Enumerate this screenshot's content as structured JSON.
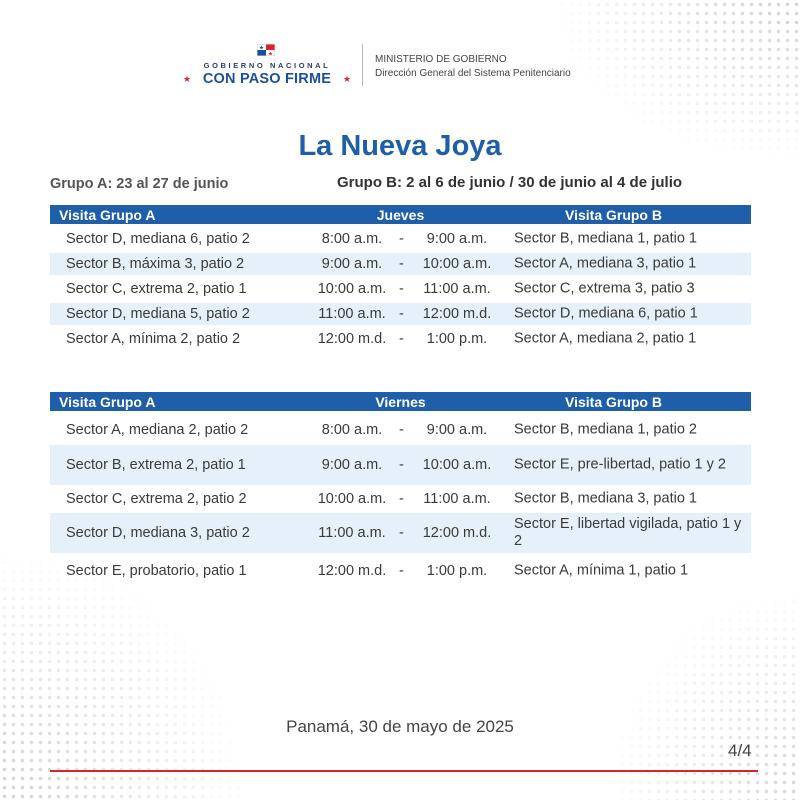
{
  "header": {
    "gov_top": "GOBIERNO NACIONAL",
    "gov_main": "CON PASO FIRME",
    "ministry": "MINISTERIO DE GOBIERNO",
    "direction": "Dirección General del Sistema Penitenciario"
  },
  "title": "La Nueva Joya",
  "grupo_a": "Grupo A: 23 al 27 de junio",
  "grupo_b": "Grupo B: 2 al 6 de junio / 30 de junio al 4 de julio",
  "table1": {
    "col_a": "Visita Grupo A",
    "day": "Jueves",
    "col_b": "Visita Grupo B",
    "rows": [
      {
        "a": "Sector D, mediana 6, patio 2",
        "start": "8:00 a.m.",
        "dash": "-",
        "end": "9:00 a.m.",
        "b": "Sector B,  mediana 1, patio 1"
      },
      {
        "a": "Sector B, máxima 3, patio 2",
        "start": "9:00 a.m.",
        "dash": "-",
        "end": "10:00 a.m.",
        "b": "Sector A, mediana 3, patio 1"
      },
      {
        "a": "Sector C, extrema 2, patio 1",
        "start": "10:00 a.m.",
        "dash": "-",
        "end": "11:00 a.m.",
        "b": "Sector C, extrema 3, patio 3"
      },
      {
        "a": "Sector D, mediana 5, patio 2",
        "start": "11:00 a.m.",
        "dash": "-",
        "end": "12:00 m.d.",
        "b": "Sector D, mediana 6, patio 1"
      },
      {
        "a": "Sector A, mínima 2, patio 2",
        "start": "12:00 m.d.",
        "dash": "-",
        "end": "1:00 p.m.",
        "b": "Sector A, mediana 2, patio 1"
      }
    ]
  },
  "table2": {
    "col_a": "Visita Grupo A",
    "day": "Viernes",
    "col_b": "Visita Grupo B",
    "rows": [
      {
        "a": "Sector A, mediana 2, patio 2",
        "start": "8:00 a.m.",
        "dash": "-",
        "end": "9:00 a.m.",
        "b": "Sector B, mediana 1, patio 2"
      },
      {
        "a": "Sector B, extrema 2, patio 1",
        "start": "9:00 a.m.",
        "dash": "-",
        "end": "10:00 a.m.",
        "b": "Sector E, pre-libertad, patio 1 y 2"
      },
      {
        "a": "Sector C, extrema 2, patio 2",
        "start": "10:00 a.m.",
        "dash": "-",
        "end": "11:00 a.m.",
        "b": "Sector B, mediana 3, patio 1"
      },
      {
        "a": "Sector D, mediana 3, patio 2",
        "start": "11:00 a.m.",
        "dash": "-",
        "end": "12:00 m.d.",
        "b": "Sector E, libertad vigilada, patio 1 y 2"
      },
      {
        "a": "Sector E, probatorio, patio 1",
        "start": "12:00 m.d.",
        "dash": "-",
        "end": "1:00 p.m.",
        "b": "Sector A, mínima  1, patio 1"
      }
    ]
  },
  "footer": {
    "date": "Panamá, 30 de mayo de 2025",
    "page": "4/4"
  },
  "colors": {
    "header_blue": "#1f5ea8",
    "row_alt": "#e6f0fa",
    "accent_red": "#d9242f"
  }
}
